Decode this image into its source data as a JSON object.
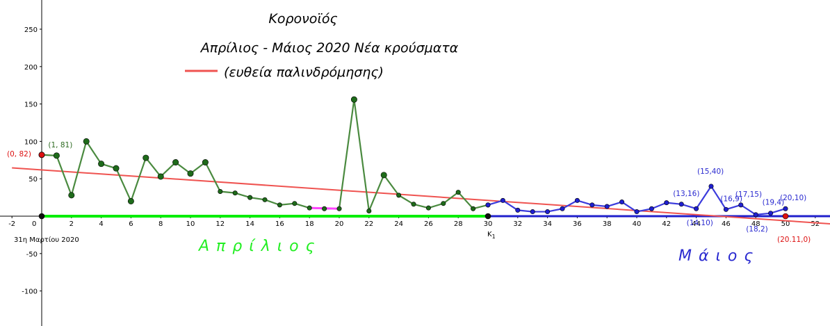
{
  "chart_data": {
    "type": "line",
    "title": "Κορονοϊός",
    "subtitle": "Απρίλιος - Μάιος 2020 Νέα κρούσματα",
    "legend": [
      {
        "label": "(ευθεία παλινδρόμησης)",
        "color": "#ef5350"
      }
    ],
    "xlim": [
      -2,
      53
    ],
    "ylim": [
      -140,
      260
    ],
    "x_ticks": [
      -2,
      2,
      4,
      6,
      8,
      10,
      12,
      14,
      16,
      18,
      20,
      22,
      24,
      26,
      28,
      30,
      32,
      34,
      36,
      38,
      40,
      42,
      44,
      46,
      48,
      50,
      52
    ],
    "y_ticks": [
      250,
      200,
      150,
      100,
      50,
      -50,
      -100
    ],
    "origin_label": "0",
    "origin_date_label": "31η Μαρτίου 2020",
    "k_point_label": "K",
    "k_point_sub": "1",
    "month_labels": {
      "april": "Απρίλιος",
      "may": "Μάιος"
    },
    "series": [
      {
        "name": "Απρίλιος",
        "color": "#4a8a3f",
        "x": [
          0,
          1,
          2,
          3,
          4,
          5,
          6,
          7,
          8,
          9,
          10,
          11,
          12,
          13,
          14,
          15,
          16,
          17,
          18,
          19,
          20,
          21,
          22,
          23,
          24,
          25,
          26,
          27,
          28,
          29,
          30
        ],
        "y": [
          82,
          81,
          28,
          100,
          70,
          64,
          20,
          78,
          53,
          72,
          57,
          72,
          33,
          31,
          25,
          22,
          15,
          17,
          11,
          10,
          10,
          156,
          7,
          55,
          28,
          16,
          11,
          17,
          32,
          10,
          15
        ]
      },
      {
        "name": "Μάιος",
        "color": "#3b3bdc",
        "x": [
          30,
          31,
          32,
          33,
          34,
          35,
          36,
          37,
          38,
          39,
          40,
          41,
          42,
          43,
          44,
          45,
          46,
          47,
          48,
          49,
          50
        ],
        "y": [
          15,
          21,
          8,
          6,
          6,
          10,
          21,
          15,
          13,
          19,
          6,
          10,
          18,
          16,
          10,
          40,
          9,
          15,
          2,
          4,
          10
        ]
      }
    ],
    "regression_line": {
      "x": [
        -2,
        53
      ],
      "y": [
        64.6,
        -10.2
      ],
      "color": "#ef5350"
    },
    "highlight_segment": {
      "x": [
        18,
        20
      ],
      "y": [
        11,
        10
      ],
      "color": "#ff44ff"
    },
    "april_baseline": {
      "x": [
        0,
        30
      ],
      "y": [
        0,
        0
      ],
      "color": "#00ee00"
    },
    "may_baseline": {
      "x": [
        30,
        53
      ],
      "y": [
        0,
        0
      ],
      "color": "#2020cc"
    },
    "special_points": [
      {
        "x": 0,
        "y": 82,
        "color": "#dd1111"
      },
      {
        "x": 50,
        "y": 0,
        "color": "#dd1111"
      },
      {
        "x": 0,
        "y": 0,
        "color": "#111111"
      },
      {
        "x": 30,
        "y": 0,
        "color": "#111111"
      }
    ],
    "annotations": [
      {
        "text": "(0, 82)",
        "x": 0,
        "y": 82,
        "color": "#dd1111",
        "anchor": "left"
      },
      {
        "text": "(1, 81)",
        "x": 1,
        "y": 81,
        "color": "#2e6b22",
        "anchor": "above"
      },
      {
        "text": "(15,40)",
        "x": 45,
        "y": 40,
        "color": "#2a2ad0",
        "anchor": "above-high"
      },
      {
        "text": "(13,16)",
        "x": 43,
        "y": 16,
        "color": "#2a2ad0",
        "anchor": "above"
      },
      {
        "text": "(16,9)",
        "x": 46,
        "y": 9,
        "color": "#2a2ad0",
        "anchor": "above-right"
      },
      {
        "text": "(17,15)",
        "x": 47,
        "y": 15,
        "color": "#2a2ad0",
        "anchor": "above-right"
      },
      {
        "text": "(19,4)",
        "x": 49,
        "y": 4,
        "color": "#2a2ad0",
        "anchor": "above"
      },
      {
        "text": "(20,10)",
        "x": 50,
        "y": 10,
        "color": "#2a2ad0",
        "anchor": "above-right"
      },
      {
        "text": "(14,10)",
        "x": 44,
        "y": 10,
        "color": "#2a2ad0",
        "anchor": "below"
      },
      {
        "text": "(18,2)",
        "x": 48,
        "y": 2,
        "color": "#2a2ad0",
        "anchor": "below"
      },
      {
        "text": "(20.11,0)",
        "x": 50,
        "y": 0,
        "color": "#dd1111",
        "anchor": "below-far"
      }
    ]
  }
}
